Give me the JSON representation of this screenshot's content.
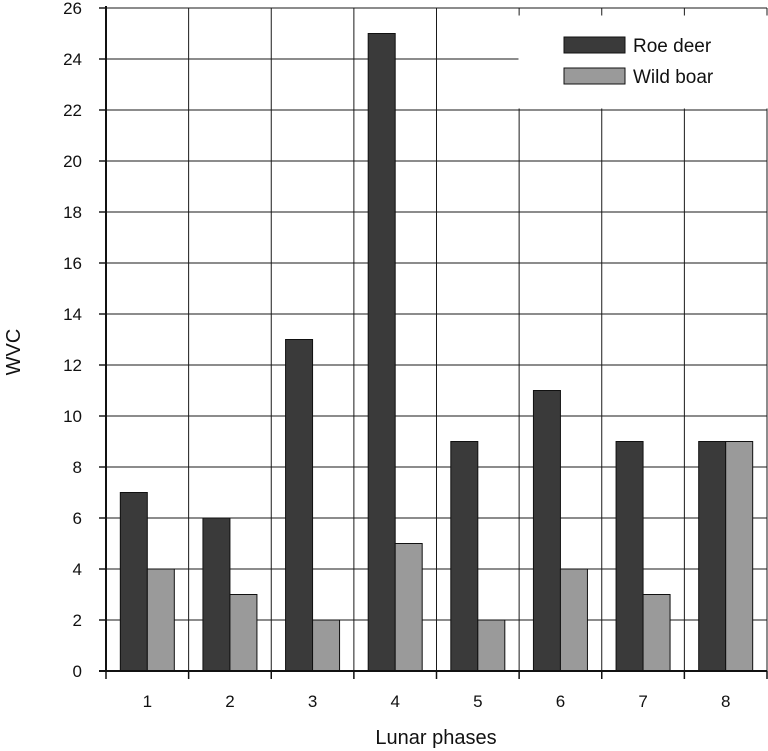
{
  "chart_data": {
    "type": "bar",
    "title": "",
    "xlabel": "Lunar phases",
    "ylabel": "WVC",
    "categories": [
      "1",
      "2",
      "3",
      "4",
      "5",
      "6",
      "7",
      "8"
    ],
    "series": [
      {
        "name": "Roe deer",
        "color": "#3a3a3a",
        "values": [
          7,
          6,
          13,
          25,
          9,
          11,
          9,
          9
        ]
      },
      {
        "name": "Wild boar",
        "color": "#9a9a9a",
        "values": [
          4,
          3,
          2,
          5,
          2,
          4,
          3,
          9
        ]
      }
    ],
    "ylim": [
      0,
      26
    ],
    "yticks": [
      "0",
      "2",
      "4",
      "6",
      "8",
      "10",
      "12",
      "14",
      "16",
      "18",
      "20",
      "22",
      "24",
      "26"
    ],
    "grid": true,
    "legend_position": "top-right"
  }
}
